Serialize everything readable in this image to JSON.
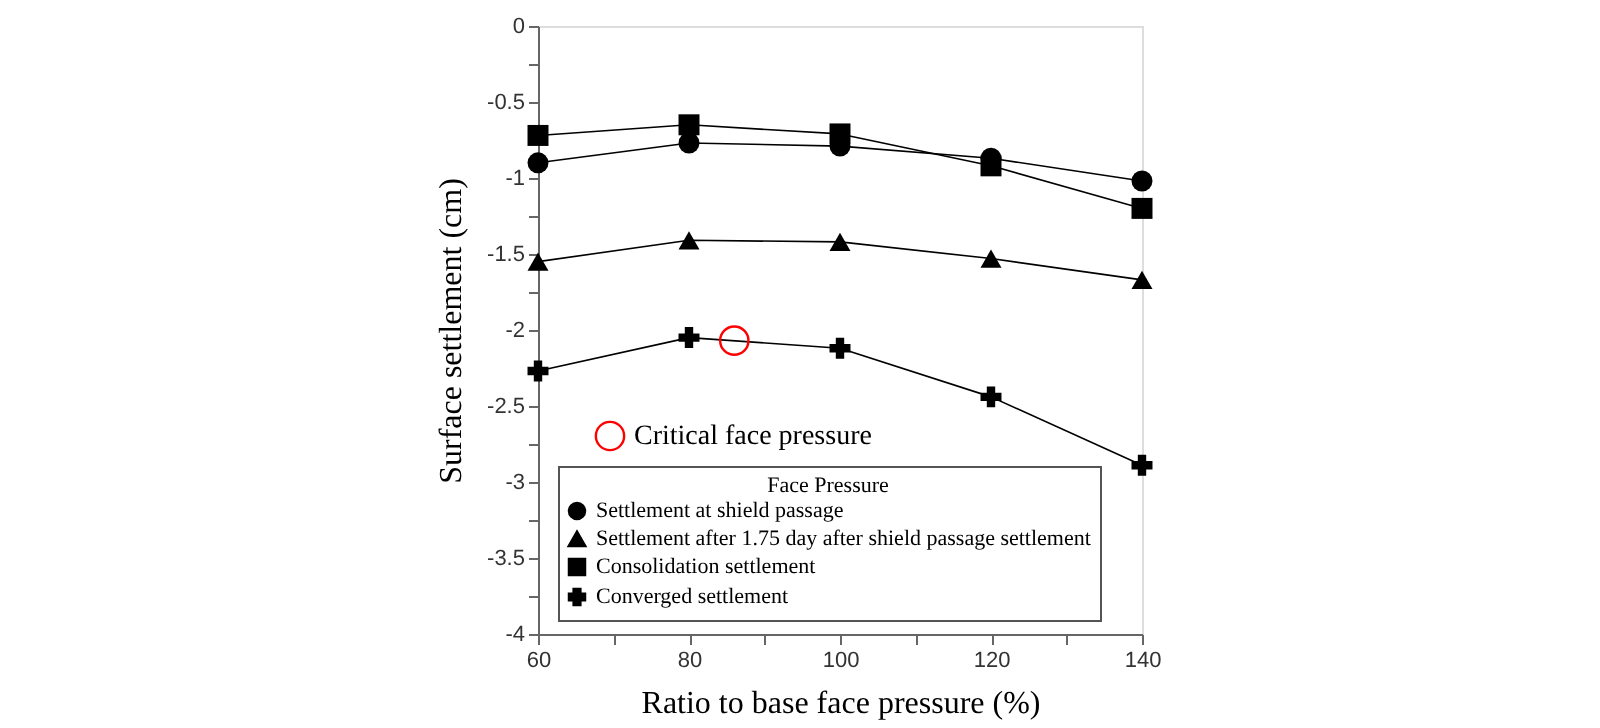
{
  "chart_data": {
    "type": "line",
    "xlabel": "Ratio to base face pressure (%)",
    "ylabel": "Surface settlement (cm)",
    "legend_title": "Face Pressure",
    "legend": "bottom",
    "grid": false,
    "x": [
      60,
      80,
      100,
      120,
      140
    ],
    "xlim": [
      60,
      140
    ],
    "xticks": [
      60,
      {
        "value": 70,
        "label": null
      },
      80,
      {
        "value": 90,
        "label": null
      },
      100,
      {
        "value": 110,
        "label": null
      },
      120,
      {
        "value": 130,
        "label": null
      },
      140
    ],
    "ylim": [
      -4,
      0
    ],
    "yticks": [
      -4,
      {
        "value": -3.75,
        "label": null
      },
      -3.5,
      {
        "value": -3.25,
        "label": null
      },
      -3,
      {
        "value": -2.75,
        "label": null
      },
      -2.5,
      {
        "value": -2.25,
        "label": null
      },
      -2,
      {
        "value": -1.75,
        "label": null
      },
      -1.5,
      {
        "value": -1.25,
        "label": null
      },
      -1,
      {
        "value": -0.75,
        "label": null
      },
      -0.5,
      {
        "value": -0.25,
        "label": null
      },
      0
    ],
    "series": [
      {
        "name": "Settlement at shield passage",
        "color": "#000000",
        "marker": "circle",
        "values": [
          -0.9,
          -0.77,
          -0.79,
          -0.87,
          -1.02
        ]
      },
      {
        "name": "Settlement after 1.75 day after shield passage settlement",
        "color": "#000000",
        "marker": "triangle",
        "values": [
          -1.55,
          -1.41,
          -1.42,
          -1.53,
          -1.67
        ]
      },
      {
        "name": "Consolidation settlement",
        "color": "#000000",
        "marker": "square",
        "values": [
          -0.72,
          -0.65,
          -0.71,
          -0.92,
          -1.2
        ]
      },
      {
        "name": "Converged settlement",
        "color": "#000000",
        "marker": "cross",
        "values": [
          -2.27,
          -2.05,
          -2.12,
          -2.44,
          -2.89
        ]
      },
      {
        "name": "Critical face pressure",
        "type": "scatter",
        "color": "#ff0000",
        "marker": "circle",
        "x": [
          86
        ],
        "values": [
          -2.07
        ]
      }
    ]
  }
}
